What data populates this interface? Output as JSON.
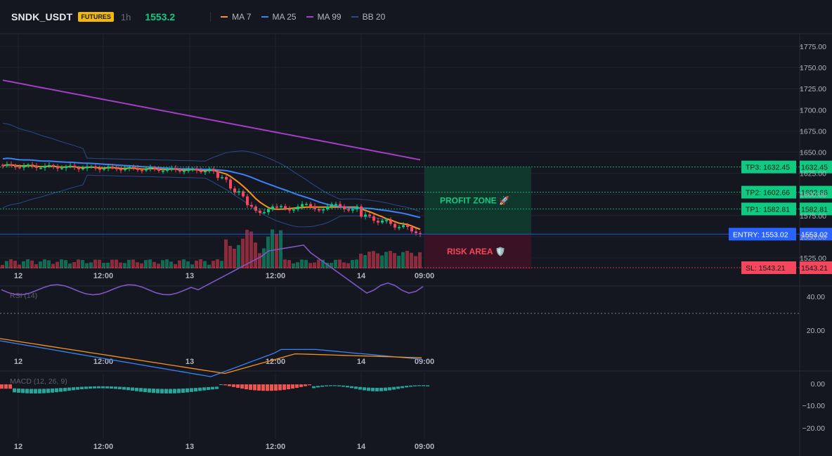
{
  "header": {
    "symbol": "SNDK_USDT",
    "badge": "FUTURES",
    "timeframe": "1h",
    "price": "1553.2",
    "indicators": [
      {
        "label": "MA 7",
        "color": "#f7931a"
      },
      {
        "label": "MA 25",
        "color": "#3b82f6"
      },
      {
        "label": "MA 99",
        "color": "#a43fc4"
      },
      {
        "label": "BB 20",
        "color": "#2a4a88"
      }
    ]
  },
  "price_axis": [
    "1775.00",
    "1750.00",
    "1725.00",
    "1700.00",
    "1675.00",
    "1650.00",
    "1625.00",
    "1600.00",
    "1575.00",
    "1550.00",
    "1525.00"
  ],
  "time_axis": [
    "12",
    "12:00",
    "13",
    "12:00",
    "14",
    "09:00"
  ],
  "zones": {
    "profit": "PROFIT ZONE 🚀",
    "risk": "RISK AREA 🛡️"
  },
  "levels": [
    {
      "label": "TP3: 1632.45",
      "value": "1632.45",
      "price": 1632.45,
      "color": "#0ecb81"
    },
    {
      "label": "TP2: 1602.66",
      "value": "1602.66",
      "price": 1602.66,
      "color": "#0ecb81"
    },
    {
      "label": "TP1: 1582.81",
      "value": "1582.81",
      "price": 1582.81,
      "color": "#0ecb81"
    },
    {
      "label": "ENTRY: 1553.02",
      "value": "1553.02",
      "price": 1553.02,
      "color": "#2962ff"
    },
    {
      "label": "SL: 1543.21",
      "value": "1543.21",
      "price": 1543.21,
      "color": "#f6465d"
    }
  ],
  "rsi": {
    "title": "RSI (14)",
    "axis": [
      "40.00",
      "20.00"
    ]
  },
  "macd": {
    "title": "MACD (12, 26, 9)",
    "axis": [
      "0.00",
      "−10.00",
      "−20.00"
    ]
  },
  "colors": {
    "up": "#0ecb81",
    "down": "#f6465d",
    "bg": "#141720",
    "grid": "#1f232e"
  }
}
